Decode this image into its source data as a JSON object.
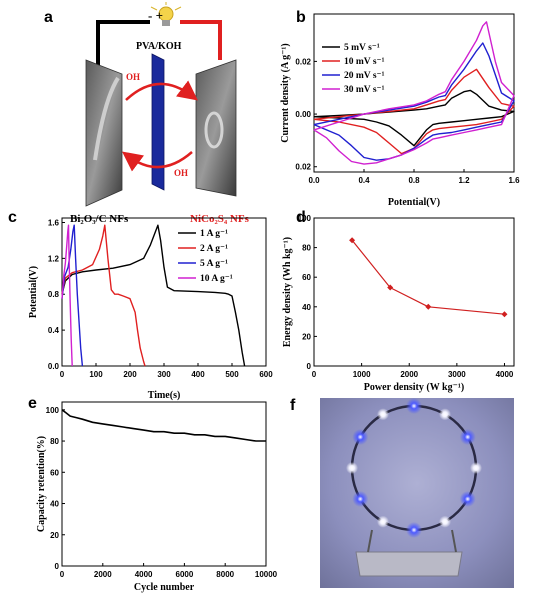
{
  "panel_labels": [
    "a",
    "b",
    "c",
    "d",
    "e",
    "f"
  ],
  "schematic": {
    "electrolyte": "PVA/KOH",
    "ion_top": "OH",
    "ion_bottom": "OH",
    "anode": "Bi₂O₃/C NFs",
    "cathode": "NiCo₂S₄ NFs",
    "polarity": "- +",
    "bulb": "bulb-icon",
    "colors": {
      "anode": "#000000",
      "cathode": "#e02020",
      "arrow": "#e02020",
      "separator": "#1a2a9c"
    }
  },
  "photo": {
    "description": "LED-ring-photo"
  },
  "chart_data": [
    {
      "panel": "b",
      "type": "line",
      "xlabel": "Potential(V)",
      "ylabel": "Current density (A g⁻¹)",
      "xlim": [
        0.0,
        1.6
      ],
      "ylim": [
        -0.022,
        0.038
      ],
      "xticks": [
        "0.0",
        "0.4",
        "0.8",
        "1.2",
        "1.6"
      ],
      "yticks": [
        "0.02",
        "0.00",
        "0.02"
      ],
      "ytick_values": [
        -0.02,
        0.0,
        0.02
      ],
      "legend_position": "left",
      "series": [
        {
          "name": "5 mV s⁻¹",
          "color": "#000000",
          "x": [
            0.0,
            0.2,
            0.4,
            0.6,
            0.8,
            0.9,
            1.0,
            1.05,
            1.1,
            1.2,
            1.25,
            1.3,
            1.4,
            1.5,
            1.6,
            1.5,
            1.4,
            1.3,
            1.2,
            1.1,
            1.0,
            0.95,
            0.9,
            0.8,
            0.7,
            0.6,
            0.5,
            0.4,
            0.2,
            0.0
          ],
          "y": [
            -0.001,
            -0.0005,
            0.0,
            0.0008,
            0.0015,
            0.002,
            0.003,
            0.0035,
            0.006,
            0.0085,
            0.009,
            0.0075,
            0.003,
            0.0015,
            0.001,
            -0.001,
            -0.0015,
            -0.002,
            -0.0025,
            -0.003,
            -0.0035,
            -0.004,
            -0.006,
            -0.012,
            -0.008,
            -0.0045,
            -0.003,
            -0.002,
            -0.0015,
            -0.001
          ]
        },
        {
          "name": "10 mV s⁻¹",
          "color": "#e02020",
          "x": [
            0.0,
            0.2,
            0.4,
            0.6,
            0.8,
            0.9,
            1.0,
            1.05,
            1.1,
            1.2,
            1.3,
            1.4,
            1.5,
            1.6,
            1.5,
            1.4,
            1.3,
            1.2,
            1.1,
            1.0,
            0.95,
            0.9,
            0.8,
            0.7,
            0.6,
            0.5,
            0.4,
            0.2,
            0.0
          ],
          "y": [
            -0.002,
            -0.001,
            0.0,
            0.001,
            0.002,
            0.0035,
            0.005,
            0.0055,
            0.009,
            0.014,
            0.017,
            0.01,
            0.004,
            0.003,
            -0.002,
            -0.003,
            -0.004,
            -0.0045,
            -0.005,
            -0.0055,
            -0.006,
            -0.0075,
            -0.013,
            -0.015,
            -0.011,
            -0.007,
            -0.005,
            -0.003,
            -0.002
          ]
        },
        {
          "name": "20 mV s⁻¹",
          "color": "#2020d0",
          "x": [
            0.0,
            0.2,
            0.4,
            0.6,
            0.8,
            0.9,
            1.0,
            1.05,
            1.1,
            1.2,
            1.3,
            1.35,
            1.4,
            1.5,
            1.6,
            1.5,
            1.4,
            1.3,
            1.2,
            1.1,
            1.0,
            0.95,
            0.9,
            0.8,
            0.7,
            0.6,
            0.5,
            0.4,
            0.3,
            0.2,
            0.0
          ],
          "y": [
            -0.004,
            -0.002,
            0.0,
            0.0015,
            0.003,
            0.0045,
            0.0065,
            0.007,
            0.011,
            0.017,
            0.024,
            0.027,
            0.022,
            0.008,
            0.005,
            -0.003,
            -0.004,
            -0.005,
            -0.006,
            -0.007,
            -0.0075,
            -0.008,
            -0.0095,
            -0.013,
            -0.0155,
            -0.017,
            -0.0175,
            -0.0165,
            -0.012,
            -0.008,
            -0.004
          ]
        },
        {
          "name": "30 mV s⁻¹",
          "color": "#d020d0",
          "x": [
            0.0,
            0.2,
            0.4,
            0.6,
            0.8,
            0.9,
            1.0,
            1.05,
            1.1,
            1.2,
            1.3,
            1.35,
            1.38,
            1.45,
            1.5,
            1.6,
            1.5,
            1.4,
            1.3,
            1.2,
            1.1,
            1.0,
            0.95,
            0.9,
            0.8,
            0.7,
            0.6,
            0.5,
            0.4,
            0.3,
            0.2,
            0.1,
            0.0
          ],
          "y": [
            -0.006,
            -0.003,
            0.0,
            0.002,
            0.0035,
            0.005,
            0.0075,
            0.0085,
            0.013,
            0.02,
            0.028,
            0.0335,
            0.035,
            0.02,
            0.012,
            0.007,
            -0.004,
            -0.005,
            -0.006,
            -0.007,
            -0.008,
            -0.009,
            -0.0095,
            -0.011,
            -0.0135,
            -0.0155,
            -0.017,
            -0.0185,
            -0.019,
            -0.018,
            -0.014,
            -0.009,
            -0.006
          ]
        }
      ]
    },
    {
      "panel": "c",
      "type": "line",
      "xlabel": "Time(s)",
      "ylabel": "Potential(V)",
      "xlim": [
        0,
        600
      ],
      "ylim": [
        0,
        1.65
      ],
      "xticks": [
        0,
        100,
        200,
        300,
        400,
        500,
        600
      ],
      "yticks": [
        "0.0",
        "0.4",
        "0.8",
        "1.2",
        "1.6"
      ],
      "legend_position": "top-right",
      "series": [
        {
          "name": "1 A g⁻¹",
          "color": "#000000",
          "x": [
            0,
            10,
            30,
            60,
            100,
            150,
            200,
            240,
            260,
            275,
            282,
            290,
            300,
            310,
            330,
            400,
            450,
            480,
            490,
            500,
            510,
            520,
            530,
            537
          ],
          "y": [
            0.8,
            0.95,
            1.02,
            1.05,
            1.07,
            1.09,
            1.13,
            1.2,
            1.35,
            1.5,
            1.57,
            1.4,
            1.1,
            0.88,
            0.84,
            0.83,
            0.82,
            0.81,
            0.8,
            0.78,
            0.6,
            0.4,
            0.15,
            0.0
          ]
        },
        {
          "name": "2 A g⁻¹",
          "color": "#e02020",
          "x": [
            0,
            10,
            30,
            60,
            90,
            110,
            120,
            126,
            135,
            145,
            155,
            165,
            180,
            200,
            215,
            222,
            230,
            240,
            244
          ],
          "y": [
            0.8,
            0.98,
            1.04,
            1.07,
            1.13,
            1.3,
            1.45,
            1.57,
            1.2,
            0.85,
            0.8,
            0.8,
            0.78,
            0.75,
            0.6,
            0.4,
            0.2,
            0.05,
            0.0
          ]
        },
        {
          "name": "5 A g⁻¹",
          "color": "#2020d0",
          "x": [
            0,
            8,
            18,
            26,
            32,
            36,
            40,
            45,
            50,
            55,
            60
          ],
          "y": [
            0.75,
            1.0,
            1.1,
            1.3,
            1.5,
            1.57,
            1.2,
            0.8,
            0.5,
            0.2,
            0.0
          ]
        },
        {
          "name": "10 A g⁻¹",
          "color": "#d020d0",
          "x": [
            0,
            5,
            10,
            14,
            17,
            19,
            21,
            24,
            27,
            30
          ],
          "y": [
            0.75,
            1.0,
            1.15,
            1.35,
            1.5,
            1.57,
            1.2,
            0.7,
            0.3,
            0.0
          ]
        }
      ]
    },
    {
      "panel": "d",
      "type": "line",
      "xlabel": "Power density (W kg⁻¹)",
      "ylabel": "Energy density (Wh kg⁻¹)",
      "xlim": [
        0,
        4200
      ],
      "ylim": [
        0,
        100
      ],
      "xticks": [
        0,
        1000,
        2000,
        3000,
        4000
      ],
      "yticks": [
        0,
        20,
        40,
        60,
        80,
        100
      ],
      "series": [
        {
          "color": "#d02020",
          "x": [
            800,
            1600,
            2400,
            4000
          ],
          "y": [
            85,
            53,
            40,
            35
          ]
        }
      ]
    },
    {
      "panel": "e",
      "type": "line",
      "xlabel": "Cycle number",
      "ylabel": "Capacity retention(%)",
      "xlim": [
        0,
        10000
      ],
      "ylim": [
        0,
        105
      ],
      "xticks": [
        0,
        2000,
        4000,
        6000,
        8000,
        10000
      ],
      "yticks": [
        0,
        20,
        40,
        60,
        80,
        100
      ],
      "series": [
        {
          "color": "#000000",
          "x": [
            0,
            200,
            400,
            700,
            1000,
            1500,
            2000,
            2500,
            3000,
            3500,
            4000,
            4500,
            5000,
            5500,
            6000,
            6500,
            7000,
            7500,
            8000,
            8500,
            9000,
            9500,
            10000
          ],
          "y": [
            100,
            98,
            96,
            95,
            94,
            92,
            91,
            90,
            89,
            88,
            87,
            86,
            86,
            85,
            85,
            84,
            84,
            83,
            83,
            82,
            81,
            80,
            80
          ]
        }
      ]
    }
  ]
}
